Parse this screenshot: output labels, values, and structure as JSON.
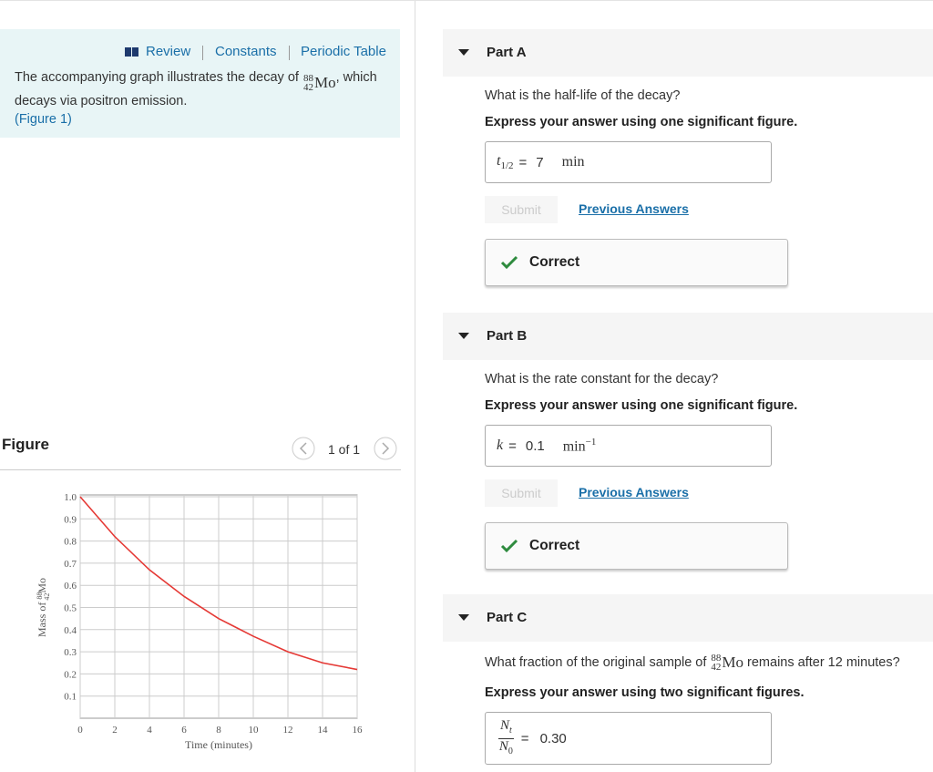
{
  "toolbar": {
    "links": [
      "Review",
      "Constants",
      "Periodic Table"
    ]
  },
  "intro": {
    "text_before": "The accompanying graph illustrates the decay of",
    "isotope": {
      "mass": "88",
      "atomic": "42",
      "symbol": "Mo"
    },
    "text_after": ", which decays via positron emission.",
    "figure_link": "(Figure 1)"
  },
  "figure": {
    "heading": "Figure",
    "pager": "1 of 1",
    "chart_data": {
      "type": "line",
      "x": [
        0,
        2,
        4,
        6,
        8,
        10,
        12,
        14,
        16
      ],
      "series": [
        {
          "name": "Mo-88 mass",
          "color": "#e53935",
          "values": [
            1.0,
            0.82,
            0.67,
            0.55,
            0.45,
            0.37,
            0.3,
            0.25,
            0.22
          ]
        }
      ],
      "xlabel": "Time (minutes)",
      "ylabel": {
        "text": "Mass of",
        "mass": "88",
        "atomic": "42",
        "symbol": "Mo"
      },
      "xlim": [
        0,
        16
      ],
      "ylim": [
        0,
        1.0
      ],
      "xticks": [
        0,
        2,
        4,
        6,
        8,
        10,
        12,
        14,
        16
      ],
      "yticks": [
        0.1,
        0.2,
        0.3,
        0.4,
        0.5,
        0.6,
        0.7,
        0.8,
        0.9,
        {
          "value": 1,
          "label": "1.0"
        }
      ],
      "grid": true
    }
  },
  "parts": [
    {
      "title": "Part A",
      "question": "What is the half-life of the decay?",
      "instruction": "Express your answer using one significant figure.",
      "answer": {
        "var": "t",
        "sub": "1/2",
        "eq": "=",
        "value": "7",
        "unit": "min"
      },
      "submit": "Submit",
      "previous": "Previous Answers",
      "result": "Correct"
    },
    {
      "title": "Part B",
      "question": "What is the rate constant for the decay?",
      "instruction": "Express your answer using one significant figure.",
      "answer": {
        "var": "k",
        "eq": "=",
        "value": "0.1",
        "unit": "min",
        "unit_exp": "−1"
      },
      "submit": "Submit",
      "previous": "Previous Answers",
      "result": "Correct"
    },
    {
      "title": "Part C",
      "question_before": "What fraction of the original sample of",
      "isotope": {
        "mass": "88",
        "atomic": "42",
        "symbol": "Mo"
      },
      "question_after": "remains after 12 minutes?",
      "instruction": "Express your answer using two significant figures.",
      "answer": {
        "num": "N",
        "num_sub": "t",
        "den": "N",
        "den_sub": "0",
        "eq": "=",
        "value": "0.30"
      }
    }
  ]
}
